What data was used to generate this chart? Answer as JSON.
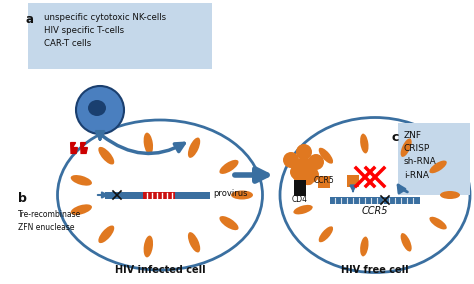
{
  "bg_color": "#ffffff",
  "label_a_box_color": "#c5d8ea",
  "label_c_box_color": "#c5d8ea",
  "cell_edge_color": "#3a6fa0",
  "chromosome_color": "#e07820",
  "provirus_bar_color": "#3a6fa0",
  "provirus_red_color": "#cc1111",
  "arrow_color": "#3a6fa0",
  "red_lightning_color": "#cc0000",
  "nk_cell_body_color": "#4a7fbf",
  "nk_cell_dark_color": "#1a3f6f",
  "orange_particle_color": "#e07820",
  "cd4_black_color": "#111111",
  "ccr5_orange_color": "#e07820",
  "text_color": "#111111",
  "label_a_text": "unspecific cytotoxic NK-cells\nHIV specific T-cells\nCAR-T cells",
  "label_c_text": "ZNF\nCRISP\nsh-RNA\ni-RNA",
  "cell1_label": "HIV infected cell",
  "cell2_label": "HIV free cell",
  "provirus_label": "provirus",
  "b_label": "b",
  "a_label": "a",
  "c_label": "c",
  "b_sublabel": "Tre-recombinase\nZFN enuclease",
  "ccr5_label": "CCR5",
  "ccr5_label2": "CCR5",
  "cd4_label": "CD4"
}
